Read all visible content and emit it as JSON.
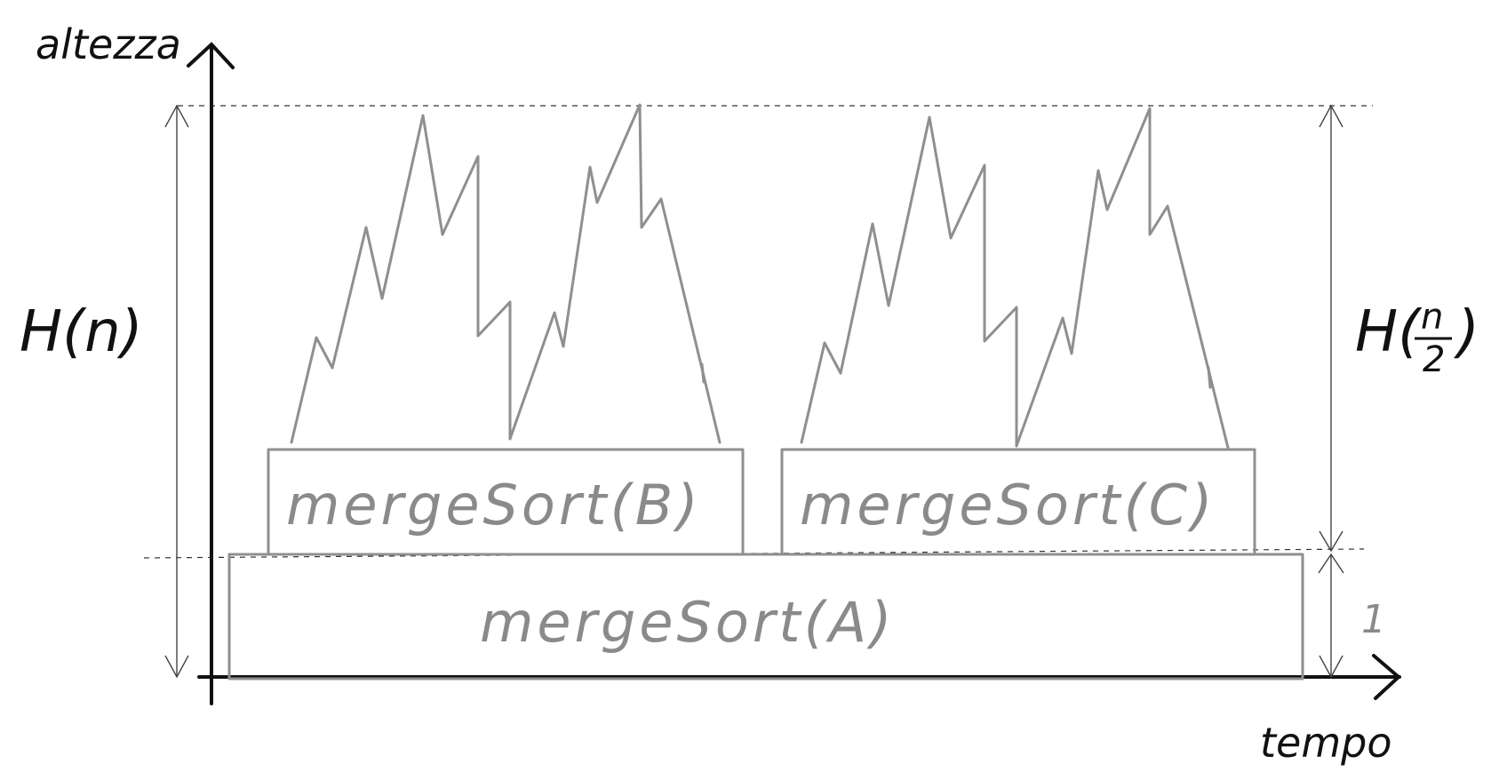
{
  "axes": {
    "y_label": "altezza",
    "x_label": "tempo"
  },
  "annotations": {
    "left_height": "H(n)",
    "right_height_prefix": "H(",
    "right_height_numerator": "n",
    "right_height_denominator": "2",
    "right_height_suffix": ")",
    "base_unit": "1"
  },
  "boxes": {
    "A": "mergeSort(A)",
    "B": "mergeSort(B)",
    "C": "mergeSort(C)"
  },
  "colors": {
    "ink": "#111111",
    "pencil_gray": "#8f8f8f"
  }
}
